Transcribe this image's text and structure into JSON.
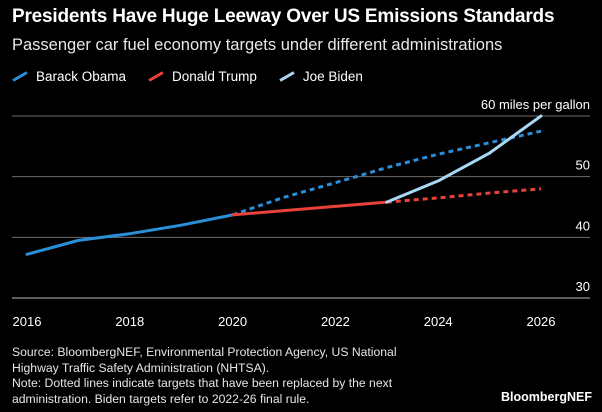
{
  "header": {
    "title": "Presidents Have Huge Leeway Over US Emissions Standards",
    "subtitle": "Passenger car fuel economy targets under different administrations"
  },
  "legend": [
    {
      "label": "Barack Obama",
      "color": "#2a8fd9"
    },
    {
      "label": "Donald Trump",
      "color": "#e8413a"
    },
    {
      "label": "Joe Biden",
      "color": "#a8d8f5"
    }
  ],
  "chart_data": {
    "type": "line",
    "title": "Presidents Have Huge Leeway Over US Emissions Standards",
    "subtitle": "Passenger car fuel economy targets under different administrations",
    "xlabel": "",
    "ylabel": "",
    "xlim": [
      2016,
      2026
    ],
    "ylim": [
      30,
      60
    ],
    "x_ticks": [
      "2016",
      "2018",
      "2020",
      "2022",
      "2024",
      "2026"
    ],
    "y_ticks": [
      "30",
      "40",
      "50",
      "60 miles per gallon"
    ],
    "y_tick_values": [
      30,
      40,
      50,
      60
    ],
    "grid": true,
    "legend_position": "top-left",
    "series": [
      {
        "name": "Barack Obama",
        "color": "#2a8fd9",
        "style": "solid",
        "x": [
          2016,
          2017,
          2018,
          2019,
          2020
        ],
        "y": [
          37.2,
          39.5,
          40.6,
          42.0,
          43.7
        ]
      },
      {
        "name": "Barack Obama",
        "color": "#2a8fd9",
        "style": "dotted",
        "x": [
          2020,
          2021,
          2022,
          2023,
          2024,
          2025,
          2026
        ],
        "y": [
          43.7,
          46.6,
          49.0,
          51.5,
          53.7,
          55.6,
          57.5
        ]
      },
      {
        "name": "Donald Trump",
        "color": "#e8413a",
        "style": "solid",
        "x": [
          2020,
          2021,
          2022,
          2023
        ],
        "y": [
          43.7,
          44.4,
          45.1,
          45.8
        ]
      },
      {
        "name": "Donald Trump",
        "color": "#e8413a",
        "style": "dotted",
        "x": [
          2023,
          2024,
          2025,
          2026
        ],
        "y": [
          45.8,
          46.5,
          47.3,
          48.0
        ]
      },
      {
        "name": "Joe Biden",
        "color": "#a8d8f5",
        "style": "solid",
        "x": [
          2023,
          2024,
          2025,
          2026
        ],
        "y": [
          45.8,
          49.3,
          53.9,
          60.0
        ]
      }
    ]
  },
  "footer": {
    "source_line1": "Source: BloombergNEF, Environmental Protection Agency, US National",
    "source_line2": "Highway Traffic Safety Administration (NHTSA).",
    "note_line1": "Note: Dotted lines indicate targets that have been replaced by the next",
    "note_line2": "administration. Biden targets refer to 2022-26 final rule.",
    "brand": "BloombergNEF"
  }
}
